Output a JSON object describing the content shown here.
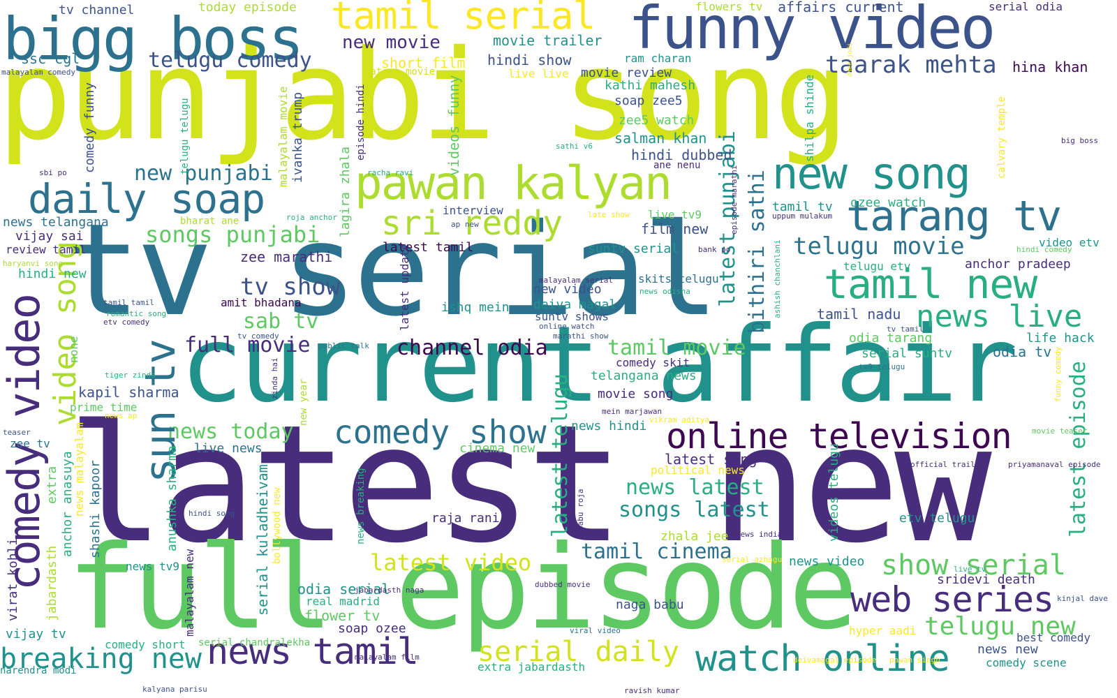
{
  "palette": {
    "dark_purple": "#472d7b",
    "deep_purple": "#3e0751",
    "indigo": "#3b528b",
    "blue": "#2c728e",
    "teal": "#21918c",
    "green_teal": "#28ae80",
    "green": "#5ec962",
    "lime": "#addc30",
    "yellow": "#fde725",
    "yellow_green": "#d2e21b",
    "background": "#ffffff"
  },
  "words": [
    {
      "text": "punjabi song",
      "color": "#d2e21b"
    },
    {
      "text": "latest new",
      "color": "#472d7b"
    },
    {
      "text": "tv serial",
      "color": "#2c728e"
    },
    {
      "text": "current affair",
      "color": "#21918c"
    },
    {
      "text": "full episode",
      "color": "#5ec962"
    },
    {
      "text": "funny video",
      "color": "#3b528b"
    },
    {
      "text": "bigg boss",
      "color": "#2c728e"
    },
    {
      "text": "tamil serial",
      "color": "#fde725"
    },
    {
      "text": "pawan kalyan",
      "color": "#addc30"
    },
    {
      "text": "daily soap",
      "color": "#2c728e"
    },
    {
      "text": "new song",
      "color": "#21918c"
    },
    {
      "text": "tarang tv",
      "color": "#2c728e"
    },
    {
      "text": "sri reddy",
      "color": "#addc30"
    },
    {
      "text": "online television",
      "color": "#3e0751"
    },
    {
      "text": "comedy show",
      "color": "#2c728e"
    },
    {
      "text": "web series",
      "color": "#472d7b"
    },
    {
      "text": "news tamil",
      "color": "#472d7b"
    },
    {
      "text": "watch online",
      "color": "#21918c"
    },
    {
      "text": "tamil new",
      "color": "#28ae80"
    },
    {
      "text": "news live",
      "color": "#28ae80"
    },
    {
      "text": "breaking new",
      "color": "#21918c"
    },
    {
      "text": "serial daily",
      "color": "#d2e21b"
    },
    {
      "text": "show serial",
      "color": "#5ec962"
    },
    {
      "text": "telugu new",
      "color": "#5ec962"
    },
    {
      "text": "taarak mehta",
      "color": "#3b528b"
    },
    {
      "text": "songs punjabi",
      "color": "#5ec962"
    },
    {
      "text": "telugu comedy",
      "color": "#3b528b"
    },
    {
      "text": "new movie",
      "color": "#472d7b"
    },
    {
      "text": "telugu movie",
      "color": "#2c728e"
    },
    {
      "text": "channel odia",
      "color": "#3e0751"
    },
    {
      "text": "full movie",
      "color": "#472d7b"
    },
    {
      "text": "tamil movie",
      "color": "#5ec962"
    },
    {
      "text": "tamil cinema",
      "color": "#2c728e"
    },
    {
      "text": "latest video",
      "color": "#d2e21b"
    },
    {
      "text": "news today",
      "color": "#5ec962"
    },
    {
      "text": "songs latest",
      "color": "#21918c"
    },
    {
      "text": "news latest",
      "color": "#28ae80"
    },
    {
      "text": "sun tv",
      "color": "#2c728e"
    },
    {
      "text": "comedy video",
      "color": "#472d7b"
    },
    {
      "text": "video song",
      "color": "#addc30"
    },
    {
      "text": "tv show",
      "color": "#3b528b"
    },
    {
      "text": "sab tv",
      "color": "#5ec962"
    },
    {
      "text": "new punjabi",
      "color": "#2c728e"
    },
    {
      "text": "latest punjabi",
      "color": "#21918c"
    },
    {
      "text": "bithiri sathi",
      "color": "#2c728e"
    },
    {
      "text": "latest telugu",
      "color": "#28ae80"
    },
    {
      "text": "latest episode",
      "color": "#28ae80"
    },
    {
      "text": "hina khan",
      "color": "#3e0751"
    },
    {
      "text": "anchor pradeep",
      "color": "#472d7b"
    },
    {
      "text": "tv channel",
      "color": "#3b528b"
    },
    {
      "text": "today episode",
      "color": "#addc30"
    },
    {
      "text": "ssc cgl",
      "color": "#2c728e"
    },
    {
      "text": "flowers tv",
      "color": "#addc30"
    },
    {
      "text": "affairs current",
      "color": "#3b528b"
    },
    {
      "text": "serial odia",
      "color": "#472d7b"
    },
    {
      "text": "movie trailer",
      "color": "#21918c"
    },
    {
      "text": "short film",
      "color": "#fde725"
    },
    {
      "text": "hindi show",
      "color": "#3b528b"
    },
    {
      "text": "ram charan",
      "color": "#21918c"
    },
    {
      "text": "latest movie",
      "color": "#d2e21b"
    },
    {
      "text": "live live",
      "color": "#fde725"
    },
    {
      "text": "movie review",
      "color": "#3b528b"
    },
    {
      "text": "kathi mahesh",
      "color": "#28ae80"
    },
    {
      "text": "soap zee5",
      "color": "#3b528b"
    },
    {
      "text": "zee5 watch",
      "color": "#5ec962"
    },
    {
      "text": "salman khan",
      "color": "#21918c"
    },
    {
      "text": "hindi dubbed",
      "color": "#3b528b"
    },
    {
      "text": "ane nenu",
      "color": "#472d7b"
    },
    {
      "text": "ozee watch",
      "color": "#28ae80"
    },
    {
      "text": "tamil tv",
      "color": "#21918c"
    },
    {
      "text": "live tv9",
      "color": "#5ec962"
    },
    {
      "text": "film new",
      "color": "#3b528b"
    },
    {
      "text": "interview",
      "color": "#3b528b"
    },
    {
      "text": "news telangana",
      "color": "#2c728e"
    },
    {
      "text": "vijay sai",
      "color": "#472d7b"
    },
    {
      "text": "bharat ane",
      "color": "#addc30"
    },
    {
      "text": "review tamil",
      "color": "#472d7b"
    },
    {
      "text": "latest tamil",
      "color": "#3e0751"
    },
    {
      "text": "zee marathi",
      "color": "#472d7b"
    },
    {
      "text": "suntv serial",
      "color": "#21918c"
    },
    {
      "text": "video etv",
      "color": "#21918c"
    },
    {
      "text": "telugu etv",
      "color": "#28ae80"
    },
    {
      "text": "amit bhadana",
      "color": "#3e0751"
    },
    {
      "text": "new video",
      "color": "#3b528b"
    },
    {
      "text": "deiva magal",
      "color": "#21918c"
    },
    {
      "text": "suntv shows",
      "color": "#3b528b"
    },
    {
      "text": "ishq mein",
      "color": "#21918c"
    },
    {
      "text": "skits telugu",
      "color": "#2c728e"
    },
    {
      "text": "tamil nadu",
      "color": "#3b528b"
    },
    {
      "text": "odia tarang",
      "color": "#5ec962"
    },
    {
      "text": "life hack",
      "color": "#21918c"
    },
    {
      "text": "serial suntv",
      "color": "#28ae80"
    },
    {
      "text": "odia tv",
      "color": "#2c728e"
    },
    {
      "text": "comedy skit",
      "color": "#472d7b"
    },
    {
      "text": "telangana news",
      "color": "#28ae80"
    },
    {
      "text": "movie song",
      "color": "#472d7b"
    },
    {
      "text": "kapil sharma",
      "color": "#3b528b"
    },
    {
      "text": "prime time",
      "color": "#5ec962"
    },
    {
      "text": "hindi new",
      "color": "#28ae80"
    },
    {
      "text": "live news",
      "color": "#2c728e"
    },
    {
      "text": "cinema new",
      "color": "#5ec962"
    },
    {
      "text": "latest song",
      "color": "#472d7b"
    },
    {
      "text": "political news",
      "color": "#fde725"
    },
    {
      "text": "news hindi",
      "color": "#21918c"
    },
    {
      "text": "raja rani",
      "color": "#472d7b"
    },
    {
      "text": "zhala jee",
      "color": "#addc30"
    },
    {
      "text": "etv telugu",
      "color": "#21918c"
    },
    {
      "text": "news video",
      "color": "#21918c"
    },
    {
      "text": "sridevi death",
      "color": "#472d7b"
    },
    {
      "text": "odia serial",
      "color": "#21918c"
    },
    {
      "text": "real madrid",
      "color": "#28ae80"
    },
    {
      "text": "flower tv",
      "color": "#5ec962"
    },
    {
      "text": "soap ozee",
      "color": "#472d7b"
    },
    {
      "text": "naga babu",
      "color": "#3b528b"
    },
    {
      "text": "news tv9",
      "color": "#21918c"
    },
    {
      "text": "vijay tv",
      "color": "#21918c"
    },
    {
      "text": "comedy short",
      "color": "#28ae80"
    },
    {
      "text": "serial chandralekha",
      "color": "#5ec962"
    },
    {
      "text": "extra jabardasth",
      "color": "#28ae80"
    },
    {
      "text": "hyper aadi",
      "color": "#fde725"
    },
    {
      "text": "best comedy",
      "color": "#3b528b"
    },
    {
      "text": "news new",
      "color": "#3b528b"
    },
    {
      "text": "comedy scene",
      "color": "#21918c"
    },
    {
      "text": "narendra modi",
      "color": "#21918c"
    },
    {
      "text": "malayalam comedy",
      "color": "#3b528b"
    },
    {
      "text": "sbi po",
      "color": "#472d7b"
    },
    {
      "text": "haryanvi song",
      "color": "#addc30"
    },
    {
      "text": "tamil tamil",
      "color": "#3b528b"
    },
    {
      "text": "etv comedy",
      "color": "#472d7b"
    },
    {
      "text": "romantic song",
      "color": "#28ae80"
    },
    {
      "text": "tiger zinda",
      "color": "#28ae80"
    },
    {
      "text": "public talk",
      "color": "#2c728e"
    },
    {
      "text": "news ap",
      "color": "#fde725"
    },
    {
      "text": "teaser",
      "color": "#3b528b"
    },
    {
      "text": "zee tv",
      "color": "#2c728e"
    },
    {
      "text": "hindi song",
      "color": "#3b528b"
    },
    {
      "text": "malayalam serial",
      "color": "#472d7b"
    },
    {
      "text": "news odisha",
      "color": "#28ae80"
    },
    {
      "text": "online watch",
      "color": "#3b528b"
    },
    {
      "text": "marathi show",
      "color": "#3b528b"
    },
    {
      "text": "tv comedy",
      "color": "#3b528b"
    },
    {
      "text": "uppum mulakum",
      "color": "#472d7b"
    },
    {
      "text": "bank po",
      "color": "#472d7b"
    },
    {
      "text": "hindi comedy",
      "color": "#5ec962"
    },
    {
      "text": "tv tamil",
      "color": "#3b528b"
    },
    {
      "text": "tv9 telugu",
      "color": "#2c728e"
    },
    {
      "text": "sathi v6",
      "color": "#28ae80"
    },
    {
      "text": "racha ravi",
      "color": "#28ae80"
    },
    {
      "text": "roja anchor",
      "color": "#28ae80"
    },
    {
      "text": "ap new",
      "color": "#3b528b"
    },
    {
      "text": "late show",
      "color": "#fde725"
    },
    {
      "text": "big boss",
      "color": "#472d7b"
    },
    {
      "text": "movie teaser",
      "color": "#5ec962"
    },
    {
      "text": "official trailer",
      "color": "#472d7b"
    },
    {
      "text": "priyamanaval episode",
      "color": "#472d7b"
    },
    {
      "text": "mein marjawan",
      "color": "#472d7b"
    },
    {
      "text": "vikram aditya",
      "color": "#fde725"
    },
    {
      "text": "news india",
      "color": "#472d7b"
    },
    {
      "text": "serial azhagu",
      "color": "#fde725"
    },
    {
      "text": "live tv",
      "color": "#28ae80"
    },
    {
      "text": "kinjal dave",
      "color": "#3b528b"
    },
    {
      "text": "viral video",
      "color": "#2c728e"
    },
    {
      "text": "jabardasth naga",
      "color": "#472d7b"
    },
    {
      "text": "dubbed movie",
      "color": "#472d7b"
    },
    {
      "text": "malayalam film",
      "color": "#472d7b"
    },
    {
      "text": "deivamagal episode",
      "color": "#fde725"
    },
    {
      "text": "pawan singh",
      "color": "#fde725"
    },
    {
      "text": "kalyana parisu",
      "color": "#3b528b"
    },
    {
      "text": "ravish kumar",
      "color": "#472d7b"
    },
    {
      "text": "comedy funny",
      "color": "#3b528b"
    },
    {
      "text": "telugu telugu",
      "color": "#28ae80"
    },
    {
      "text": "malayalam movie",
      "color": "#addc30"
    },
    {
      "text": "ivanka trump",
      "color": "#3b528b"
    },
    {
      "text": "episode hindi",
      "color": "#472d7b"
    },
    {
      "text": "videos funny",
      "color": "#5ec962"
    },
    {
      "text": "lagira zhala",
      "color": "#5ec962"
    },
    {
      "text": "latest update",
      "color": "#472d7b"
    },
    {
      "text": "shilpa shinde",
      "color": "#28ae80"
    },
    {
      "text": "calvary temple",
      "color": "#fde725"
    },
    {
      "text": "dhee jodi",
      "color": "#fde725"
    },
    {
      "text": "episode marathi",
      "color": "#472d7b"
    },
    {
      "text": "ashish chanchlani",
      "color": "#28ae80"
    },
    {
      "text": "funny comedy",
      "color": "#fde725"
    },
    {
      "text": "zinda hai",
      "color": "#472d7b"
    },
    {
      "text": "new year",
      "color": "#addc30"
    },
    {
      "text": "none",
      "color": "#5ec962"
    },
    {
      "text": "extra",
      "color": "#5ec962"
    },
    {
      "text": "anchor anasuya",
      "color": "#28ae80"
    },
    {
      "text": "jabardasth",
      "color": "#addc30"
    },
    {
      "text": "shashi kapoor",
      "color": "#2c728e"
    },
    {
      "text": "news malayalam",
      "color": "#fde725"
    },
    {
      "text": "virat kohli",
      "color": "#472d7b"
    },
    {
      "text": "anushka sharma",
      "color": "#28ae80"
    },
    {
      "text": "serial kuladheivam",
      "color": "#21918c"
    },
    {
      "text": "malayalam new",
      "color": "#472d7b"
    },
    {
      "text": "bollywood new",
      "color": "#fde725"
    },
    {
      "text": "news breaking",
      "color": "#28ae80"
    },
    {
      "text": "babu roja",
      "color": "#472d7b"
    },
    {
      "text": "videos telugu",
      "color": "#28ae80"
    }
  ]
}
